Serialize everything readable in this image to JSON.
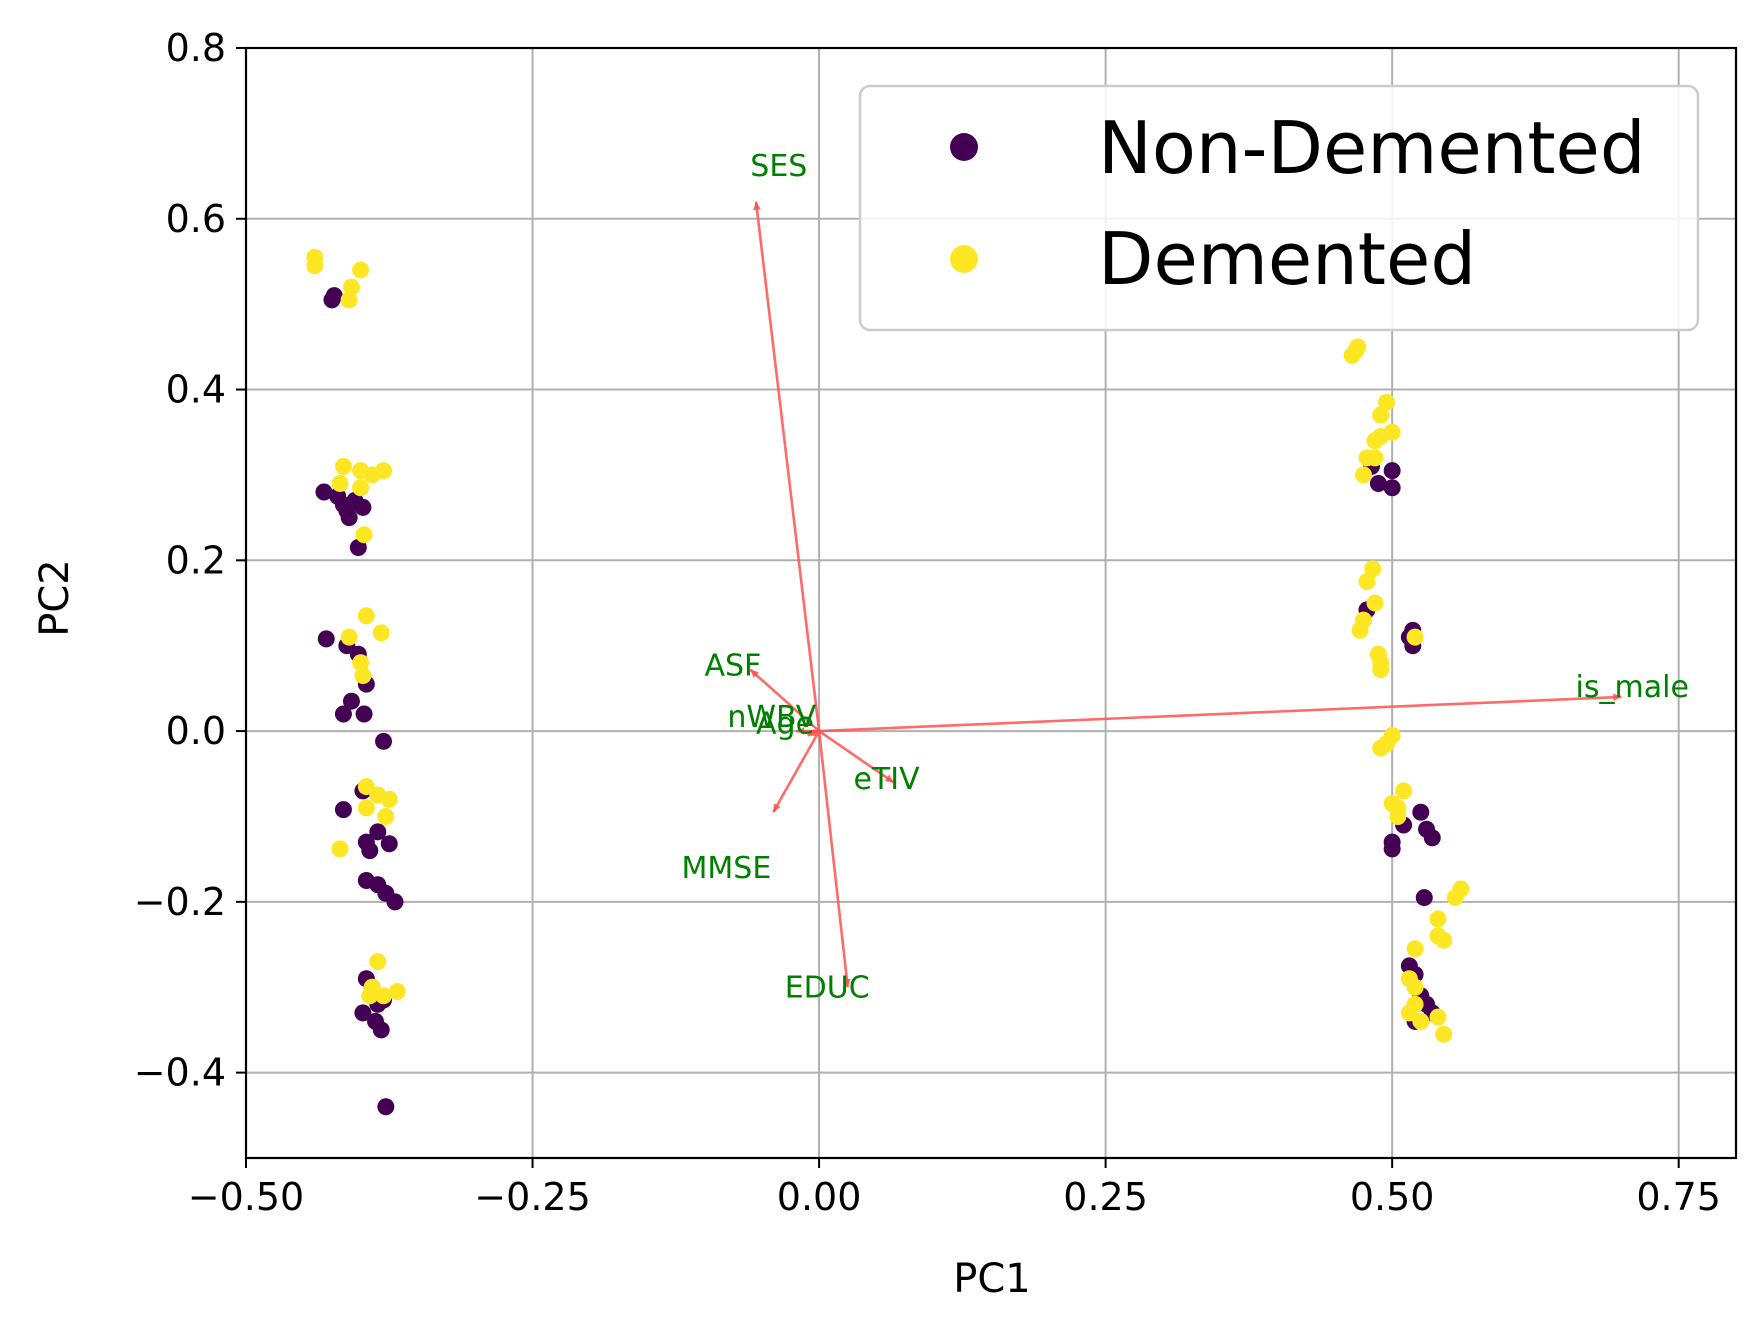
{
  "chart_data": {
    "type": "scatter",
    "title": "",
    "xlabel": "PC1",
    "ylabel": "PC2",
    "xlim": [
      -0.5,
      0.8
    ],
    "ylim": [
      -0.5,
      0.8
    ],
    "x_ticks": [
      -0.5,
      -0.25,
      0.0,
      0.25,
      0.5,
      0.75
    ],
    "x_tick_labels": [
      "−0.50",
      "−0.25",
      "0.00",
      "0.25",
      "0.50",
      "0.75"
    ],
    "y_ticks": [
      -0.4,
      -0.2,
      0.0,
      0.2,
      0.4,
      0.6,
      0.8
    ],
    "y_tick_labels": [
      "−0.4",
      "−0.2",
      "0.0",
      "0.2",
      "0.4",
      "0.6",
      "0.8"
    ],
    "grid": true,
    "legend_position": "top-right",
    "colors": {
      "non_demented": "#440154",
      "demented": "#fde725",
      "arrow": "#ff5050",
      "arrow_label": "#008000",
      "grid": "#b0b0b0"
    },
    "series": [
      {
        "name": "Non-Demented",
        "color": "#440154",
        "points": [
          [
            -0.425,
            0.505
          ],
          [
            -0.423,
            0.51
          ],
          [
            -0.432,
            0.28
          ],
          [
            -0.42,
            0.275
          ],
          [
            -0.415,
            0.265
          ],
          [
            -0.405,
            0.27
          ],
          [
            -0.41,
            0.25
          ],
          [
            -0.398,
            0.262
          ],
          [
            -0.412,
            0.258
          ],
          [
            -0.402,
            0.215
          ],
          [
            -0.43,
            0.108
          ],
          [
            -0.412,
            0.1
          ],
          [
            -0.402,
            0.09
          ],
          [
            -0.395,
            0.055
          ],
          [
            -0.408,
            0.035
          ],
          [
            -0.415,
            0.02
          ],
          [
            -0.397,
            0.02
          ],
          [
            -0.38,
            -0.012
          ],
          [
            -0.415,
            -0.092
          ],
          [
            -0.398,
            -0.07
          ],
          [
            -0.385,
            -0.118
          ],
          [
            -0.395,
            -0.13
          ],
          [
            -0.392,
            -0.14
          ],
          [
            -0.375,
            -0.132
          ],
          [
            -0.395,
            -0.175
          ],
          [
            -0.385,
            -0.18
          ],
          [
            -0.378,
            -0.19
          ],
          [
            -0.37,
            -0.2
          ],
          [
            -0.395,
            -0.29
          ],
          [
            -0.39,
            -0.3
          ],
          [
            -0.385,
            -0.32
          ],
          [
            -0.38,
            -0.315
          ],
          [
            -0.398,
            -0.33
          ],
          [
            -0.387,
            -0.34
          ],
          [
            -0.382,
            -0.35
          ],
          [
            -0.378,
            -0.44
          ],
          [
            0.482,
            0.31
          ],
          [
            0.488,
            0.29
          ],
          [
            0.5,
            0.305
          ],
          [
            0.5,
            0.285
          ],
          [
            0.478,
            0.142
          ],
          [
            0.518,
            0.118
          ],
          [
            0.515,
            0.11
          ],
          [
            0.518,
            0.1
          ],
          [
            0.51,
            -0.11
          ],
          [
            0.525,
            -0.095
          ],
          [
            0.53,
            -0.115
          ],
          [
            0.535,
            -0.125
          ],
          [
            0.5,
            -0.13
          ],
          [
            0.5,
            -0.138
          ],
          [
            0.528,
            -0.195
          ],
          [
            0.515,
            -0.275
          ],
          [
            0.52,
            -0.285
          ],
          [
            0.525,
            -0.31
          ],
          [
            0.53,
            -0.32
          ],
          [
            0.535,
            -0.33
          ],
          [
            0.52,
            -0.34
          ]
        ]
      },
      {
        "name": "Demented",
        "color": "#fde725",
        "points": [
          [
            -0.44,
            0.545
          ],
          [
            -0.44,
            0.555
          ],
          [
            -0.408,
            0.52
          ],
          [
            -0.4,
            0.54
          ],
          [
            -0.41,
            0.505
          ],
          [
            -0.415,
            0.31
          ],
          [
            -0.4,
            0.305
          ],
          [
            -0.39,
            0.3
          ],
          [
            -0.38,
            0.305
          ],
          [
            -0.418,
            0.29
          ],
          [
            -0.4,
            0.285
          ],
          [
            -0.397,
            0.23
          ],
          [
            -0.395,
            0.135
          ],
          [
            -0.382,
            0.115
          ],
          [
            -0.4,
            0.08
          ],
          [
            -0.398,
            0.065
          ],
          [
            -0.41,
            0.11
          ],
          [
            -0.395,
            -0.065
          ],
          [
            -0.385,
            -0.075
          ],
          [
            -0.375,
            -0.08
          ],
          [
            -0.395,
            -0.09
          ],
          [
            -0.378,
            -0.1
          ],
          [
            -0.418,
            -0.138
          ],
          [
            -0.385,
            -0.27
          ],
          [
            -0.39,
            -0.3
          ],
          [
            -0.38,
            -0.31
          ],
          [
            -0.368,
            -0.305
          ],
          [
            -0.392,
            -0.31
          ],
          [
            0.465,
            0.44
          ],
          [
            0.468,
            0.445
          ],
          [
            0.47,
            0.45
          ],
          [
            0.49,
            0.37
          ],
          [
            0.495,
            0.385
          ],
          [
            0.49,
            0.345
          ],
          [
            0.5,
            0.35
          ],
          [
            0.485,
            0.34
          ],
          [
            0.478,
            0.32
          ],
          [
            0.485,
            0.32
          ],
          [
            0.475,
            0.3
          ],
          [
            0.483,
            0.19
          ],
          [
            0.478,
            0.175
          ],
          [
            0.485,
            0.15
          ],
          [
            0.475,
            0.13
          ],
          [
            0.472,
            0.118
          ],
          [
            0.488,
            0.09
          ],
          [
            0.49,
            0.08
          ],
          [
            0.49,
            0.072
          ],
          [
            0.52,
            0.11
          ],
          [
            0.5,
            -0.005
          ],
          [
            0.49,
            -0.02
          ],
          [
            0.495,
            -0.015
          ],
          [
            0.51,
            -0.07
          ],
          [
            0.505,
            -0.09
          ],
          [
            0.5,
            -0.085
          ],
          [
            0.505,
            -0.1
          ],
          [
            0.56,
            -0.185
          ],
          [
            0.555,
            -0.195
          ],
          [
            0.54,
            -0.22
          ],
          [
            0.54,
            -0.24
          ],
          [
            0.545,
            -0.245
          ],
          [
            0.52,
            -0.255
          ],
          [
            0.515,
            -0.29
          ],
          [
            0.52,
            -0.3
          ],
          [
            0.52,
            -0.32
          ],
          [
            0.515,
            -0.33
          ],
          [
            0.525,
            -0.34
          ],
          [
            0.54,
            -0.335
          ],
          [
            0.545,
            -0.355
          ]
        ]
      }
    ],
    "loading_arrows": [
      {
        "label": "SES",
        "x": -0.055,
        "y": 0.62,
        "label_x": -0.06,
        "label_y": 0.65
      },
      {
        "label": "is_male",
        "x": 0.7,
        "y": 0.04,
        "label_x": 0.66,
        "label_y": 0.04
      },
      {
        "label": "ASF",
        "x": -0.06,
        "y": 0.072,
        "label_x": -0.1,
        "label_y": 0.065
      },
      {
        "label": "nWBV",
        "x": -0.02,
        "y": 0.0,
        "label_x": -0.08,
        "label_y": 0.005
      },
      {
        "label": "Age",
        "x": -0.01,
        "y": -0.005,
        "label_x": -0.055,
        "label_y": -0.003
      },
      {
        "label": "eTIV",
        "x": 0.065,
        "y": -0.06,
        "label_x": 0.03,
        "label_y": -0.068
      },
      {
        "label": "MMSE",
        "x": -0.04,
        "y": -0.095,
        "label_x": -0.12,
        "label_y": -0.172
      },
      {
        "label": "EDUC",
        "x": 0.025,
        "y": -0.3,
        "label_x": -0.03,
        "label_y": -0.312
      }
    ],
    "legend": [
      {
        "label": "Non-Demented",
        "color": "#440154"
      },
      {
        "label": "Demented",
        "color": "#fde725"
      }
    ]
  }
}
